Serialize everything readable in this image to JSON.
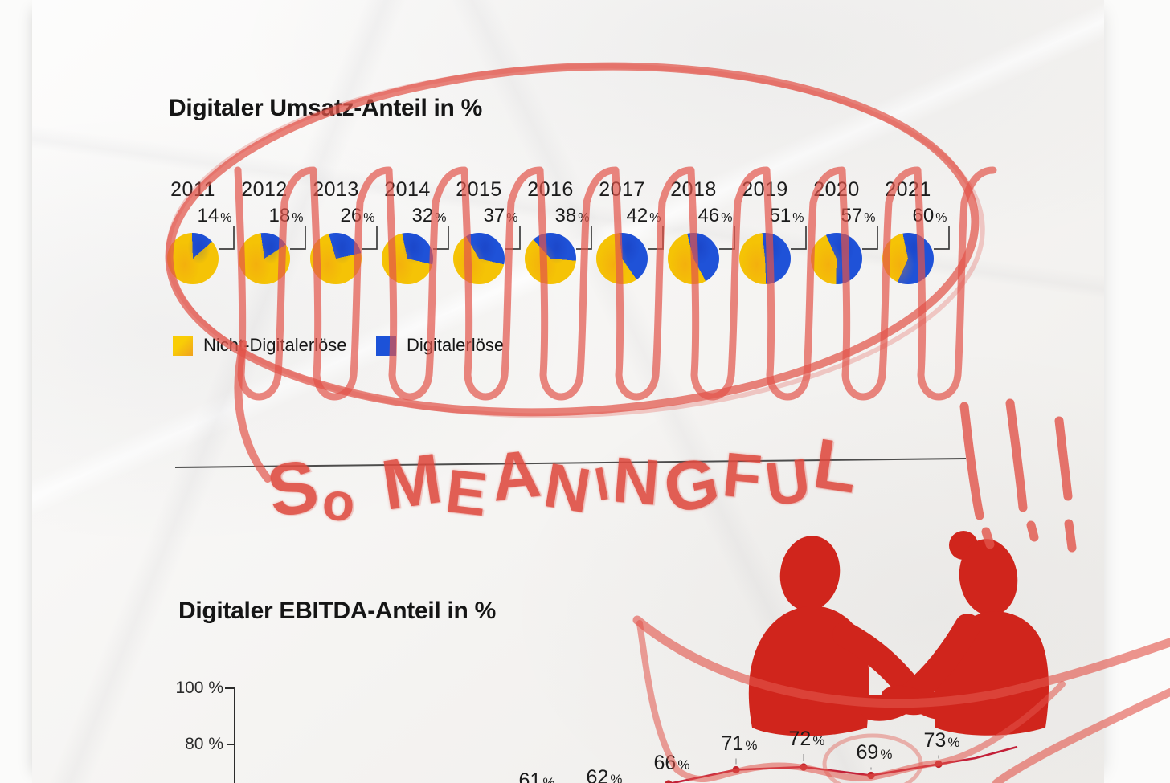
{
  "chart_data": [
    {
      "type": "pie",
      "title": "Digitaler Umsatz-Anteil in %",
      "unit": "%",
      "categories": [
        "2011",
        "2012",
        "2013",
        "2014",
        "2015",
        "2016",
        "2017",
        "2018",
        "2019",
        "2020",
        "2021"
      ],
      "series": [
        {
          "name": "Digitalerlöse",
          "color": "#1F52D8",
          "values": [
            14,
            18,
            26,
            32,
            37,
            38,
            42,
            46,
            51,
            57,
            60
          ]
        },
        {
          "name": "Nicht-Digitalerlöse",
          "color": "#F5C306",
          "values": [
            86,
            82,
            74,
            68,
            63,
            62,
            58,
            54,
            49,
            43,
            40
          ]
        }
      ],
      "legend": [
        {
          "label": "Nicht-Digitalerlöse",
          "color": "#F5C306"
        },
        {
          "label": "Digitalerlöse",
          "color": "#1C52D8"
        }
      ],
      "legend_position": "bottom-left"
    },
    {
      "type": "line",
      "title": "Digitaler EBITDA-Anteil in %",
      "unit": "%",
      "values": [
        61,
        62,
        66,
        71,
        72,
        69,
        73
      ],
      "yticks": [
        "100 %",
        "80 %"
      ],
      "ylim": [
        0,
        100
      ],
      "line_color": "#C32038",
      "grid": false
    }
  ],
  "annotations": {
    "handwritten_text": "So MEANINGFUL",
    "exclamation_marks": "!!!",
    "marker_color": "#E2544A",
    "silhouette_illustration": "two-people-handshake",
    "silhouette_color": "#D0251C"
  }
}
